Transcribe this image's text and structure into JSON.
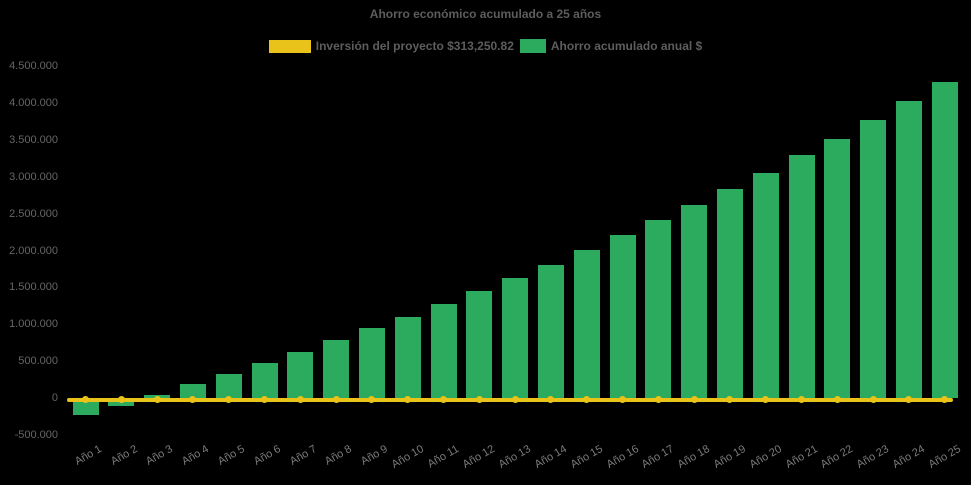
{
  "title": "Ahorro económico acumulado a 25 años",
  "colors": {
    "background": "#000000",
    "bar_green": "#2cab5f",
    "line_yellow": "#e9c319",
    "title_text": "#5d5d5d",
    "axis_text": "#666666",
    "xlabel_text": "#7b7b7b"
  },
  "chart_data": {
    "type": "bar",
    "title": "Ahorro económico acumulado a 25 años",
    "xlabel": "",
    "ylabel": "",
    "ylim": [
      -500000,
      4500000
    ],
    "ytick_step": 500000,
    "grid": false,
    "legend_position": "top-center",
    "categories": [
      "Año 1",
      "Año 2",
      "Año 3",
      "Año 4",
      "Año 5",
      "Año 6",
      "Año 7",
      "Año 8",
      "Año 9",
      "Año 10",
      "Año 11",
      "Año 12",
      "Año 13",
      "Año 14",
      "Año 15",
      "Año 16",
      "Año 17",
      "Año 18",
      "Año 19",
      "Año 20",
      "Año 21",
      "Año 22",
      "Año 23",
      "Año 24",
      "Año 25"
    ],
    "series": [
      {
        "name": "Inversión del proyecto $313,250.82",
        "type": "line",
        "color": "#e9c319",
        "constant_value": -25000,
        "investment_amount_label": "$313,250.82"
      },
      {
        "name": "Ahorro acumulado anual $",
        "type": "bar",
        "color": "#2cab5f",
        "values": [
          -230000,
          -110000,
          40000,
          185000,
          330000,
          475000,
          620000,
          785000,
          950000,
          1105000,
          1270000,
          1455000,
          1625000,
          1810000,
          2005000,
          2215000,
          2410000,
          2620000,
          2835000,
          3055000,
          3290000,
          3515000,
          3765000,
          4030000,
          4280000
        ]
      }
    ],
    "yticks": [
      {
        "value": 4500000,
        "label": "4.500.000"
      },
      {
        "value": 4000000,
        "label": "4.000.000"
      },
      {
        "value": 3500000,
        "label": "3.500.000"
      },
      {
        "value": 3000000,
        "label": "3.000.000"
      },
      {
        "value": 2500000,
        "label": "2.500.000"
      },
      {
        "value": 2000000,
        "label": "2.000.000"
      },
      {
        "value": 1500000,
        "label": "1.500.000"
      },
      {
        "value": 1000000,
        "label": "1.000.000"
      },
      {
        "value": 500000,
        "label": "500.000"
      },
      {
        "value": 0,
        "label": "0"
      },
      {
        "value": -500000,
        "label": "-500.000"
      }
    ]
  }
}
